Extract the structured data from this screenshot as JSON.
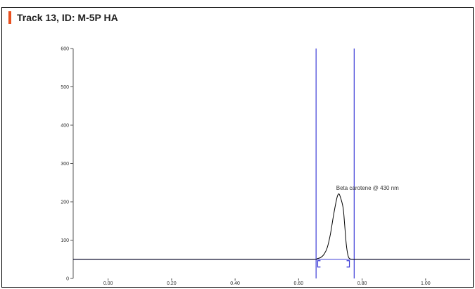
{
  "track": {
    "title": "Track 13, ID: M-5P HA",
    "accent_color": "#e8501f"
  },
  "chart_data": {
    "type": "line",
    "title": "Track 13, ID: M-5P HA",
    "xlabel": "",
    "ylabel": "",
    "xlim": [
      -0.11,
      1.14
    ],
    "ylim": [
      0,
      600
    ],
    "x_ticks": [
      "0.00",
      "0.20",
      "0.40",
      "0.60",
      "0.80",
      "1.00"
    ],
    "y_ticks": [
      "0",
      "100",
      "200",
      "300",
      "400",
      "500",
      "600"
    ],
    "baseline_value": 50,
    "series": [
      {
        "color": "#000000",
        "x": [
          -0.11,
          0.0,
          0.2,
          0.4,
          0.6,
          0.65,
          0.66,
          0.67,
          0.68,
          0.69,
          0.7,
          0.71,
          0.72,
          0.725,
          0.73,
          0.74,
          0.745,
          0.75,
          0.755,
          0.76,
          0.77,
          0.8,
          1.0,
          1.14
        ],
        "y": [
          50,
          50,
          50,
          50,
          50,
          50,
          52,
          55,
          63,
          80,
          115,
          165,
          208,
          220,
          216,
          185,
          140,
          90,
          62,
          52,
          50,
          50,
          50,
          50
        ]
      }
    ],
    "vertical_markers": [
      0.655,
      0.775
    ],
    "marker_color": "#3a3ad6",
    "peak": {
      "label": "Beta carotene @ 430 nm",
      "x": 0.725,
      "y": 220,
      "start": 0.66,
      "end": 0.76
    }
  }
}
